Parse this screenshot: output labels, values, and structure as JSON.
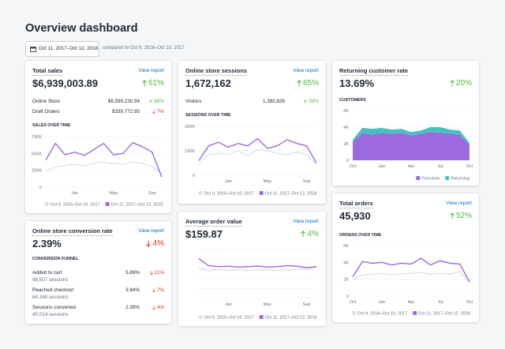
{
  "header": {
    "title": "Overview dashboard",
    "date_range": "Oct 11, 2017–Oct 12, 2018",
    "comparison": "compared to Oct 9, 2016–Oct 10, 2017"
  },
  "cards": [
    {
      "title": "Total sales",
      "link": "View report",
      "value": "$6,939,003.89",
      "change": {
        "direction": "up",
        "text": "61%"
      },
      "rows": [
        {
          "label": "Online Store",
          "value": "$6,599,230.94",
          "change": {
            "direction": "up",
            "text": "68%"
          }
        },
        {
          "label": "Draft Orders",
          "value": "$339,772.95",
          "change": {
            "direction": "down",
            "text": "7%"
          }
        }
      ],
      "chart": {
        "type": "line",
        "title": "SALES OVER TIME",
        "categories": [
          null,
          null,
          null,
          "Jan",
          null,
          null,
          null,
          "May",
          null,
          null,
          null,
          "Sep",
          null
        ],
        "series": [
          {
            "name": "Oct 9, 2016–Oct 10, 2017",
            "color": "#dfe3e8",
            "values": [
              240000,
              300000,
              320000,
              340000,
              310000,
              360000,
              370000,
              350000,
              340000,
              370000,
              350000,
              310000,
              200000
            ]
          },
          {
            "name": "Oct 11, 2017–Oct 12, 2018",
            "color": "#9c6ade",
            "values": [
              400000,
              650000,
              480000,
              520000,
              470000,
              560000,
              650000,
              480000,
              500000,
              660000,
              600000,
              520000,
              150000
            ]
          }
        ],
        "ylim": [
          0,
          750000
        ],
        "yticks": [
          {
            "value": 0,
            "label": "0"
          },
          {
            "value": 250000,
            "label": "250K"
          },
          {
            "value": 500000,
            "label": "500K"
          },
          {
            "value": 750000,
            "label": "750K"
          }
        ],
        "grid": true,
        "tick_labels": true,
        "legend": "bottom"
      }
    },
    {
      "title": "Online store conversion rate",
      "link": "View report",
      "value": "2.39%",
      "change": {
        "direction": "down",
        "text": "4%"
      },
      "funnel_title": "CONVERSION FUNNEL",
      "funnel": [
        {
          "label": "Added to cart",
          "sessions": "98,507 sessions",
          "rate": "5.89%",
          "change": {
            "direction": "down",
            "text": "11%"
          }
        },
        {
          "label": "Reached checkout",
          "sessions": "64,160 sessions",
          "rate": "3.84%",
          "change": {
            "direction": "down",
            "text": "7%"
          }
        },
        {
          "label": "Sessions converted",
          "sessions": "40,014 sessions",
          "rate": "2.39%",
          "change": {
            "direction": "down",
            "text": "4%"
          }
        }
      ]
    },
    {
      "title": "Online store sessions",
      "link": "View report",
      "value": "1,672,162",
      "change": {
        "direction": "up",
        "text": "65%"
      },
      "rows": [
        {
          "label": "Visitors",
          "value": "1,380,828",
          "change": {
            "direction": "up",
            "text": "59%"
          }
        }
      ],
      "chart": {
        "type": "line",
        "title": "SESSIONS OVER TIME",
        "categories": [
          null,
          null,
          null,
          "Jan",
          null,
          null,
          null,
          "May",
          null,
          null,
          null,
          "Sep",
          null
        ],
        "series": [
          {
            "name": "Oct 9, 2016–Oct 10, 2017",
            "color": "#dfe3e8",
            "values": [
              45000,
              85000,
              90000,
              85000,
              100000,
              80000,
              105000,
              100000,
              90000,
              85000,
              95000,
              85000,
              40000
            ]
          },
          {
            "name": "Oct 11, 2017–Oct 12, 2018",
            "color": "#9c6ade",
            "values": [
              60000,
              120000,
              135000,
              115000,
              130000,
              120000,
              150000,
              110000,
              120000,
              145000,
              130000,
              120000,
              50000
            ]
          }
        ],
        "ylim": [
          0,
          200000
        ],
        "yticks": [
          {
            "value": 0,
            "label": "0"
          },
          {
            "value": 100000,
            "label": "100K"
          },
          {
            "value": 200000,
            "label": "200K"
          }
        ],
        "grid": true,
        "tick_labels": true,
        "legend": "bottom"
      }
    },
    {
      "title": "Average order value",
      "link": "View report",
      "value": "$159.87",
      "change": {
        "direction": "up",
        "text": "4%"
      },
      "chart": {
        "type": "line",
        "categories": [
          null,
          null,
          null,
          "Jan",
          null,
          null,
          null,
          "May",
          null,
          null,
          null,
          "Sep",
          null
        ],
        "series": [
          {
            "name": "Oct 9, 2016–Oct 10, 2017",
            "color": "#dfe3e8",
            "values": [
              150,
              140,
              145,
              142,
              145,
              140,
              143,
              145,
              140,
              142,
              145,
              148,
              155
            ]
          },
          {
            "name": "Oct 11, 2017–Oct 12, 2018",
            "color": "#9c6ade",
            "values": [
              200,
              165,
              160,
              162,
              158,
              160,
              163,
              158,
              160,
              165,
              162,
              155,
              160
            ]
          }
        ],
        "ylim": [
          0,
          250
        ],
        "yticks": [
          0,
          50,
          100,
          150,
          200,
          250
        ],
        "grid": true,
        "tick_labels": false,
        "legend": "bottom"
      }
    },
    {
      "title": "Returning customer rate",
      "value": "13.69%",
      "change": {
        "direction": "up",
        "text": "20%"
      },
      "chart": {
        "type": "area",
        "stacked": true,
        "title": "CUSTOMERS",
        "categories": [
          "Oct",
          null,
          null,
          "Jan",
          null,
          null,
          "Apr",
          null,
          null,
          "Jul",
          null,
          null,
          "Oct"
        ],
        "series": [
          {
            "name": "First-time",
            "color": "#9c6ade",
            "values": [
              2200,
              3300,
              3100,
              3300,
              3200,
              3300,
              3000,
              3200,
              3400,
              3300,
              3200,
              3100,
              1800
            ]
          },
          {
            "name": "Returning",
            "color": "#47c1bf",
            "values": [
              300,
              600,
              700,
              600,
              500,
              500,
              400,
              400,
              600,
              700,
              500,
              500,
              300
            ]
          }
        ],
        "ylim": [
          0,
          6000
        ],
        "yticks": [
          0,
          {
            "value": 2000,
            "label": "2K"
          },
          {
            "value": 4000,
            "label": "4K"
          },
          {
            "value": 6000,
            "label": "6K"
          }
        ],
        "grid": true,
        "tick_labels": true,
        "legend": "bottom-right"
      }
    },
    {
      "title": "Total orders",
      "link": "View report",
      "value": "45,930",
      "change": {
        "direction": "up",
        "text": "52%"
      },
      "chart": {
        "type": "line",
        "title": "ORDERS OVER TIME",
        "categories": [
          "Oct",
          null,
          null,
          "Jan",
          null,
          null,
          "Apr",
          null,
          null,
          "Jul",
          null,
          null,
          "Oct"
        ],
        "series": [
          {
            "name": "Oct 9, 2016–Oct 10, 2017",
            "color": "#dfe3e8",
            "values": [
              2000,
              2500,
              2600,
              2700,
              2500,
              2600,
              2700,
              2800,
              2600,
              2700,
              2600,
              2900,
              1600
            ]
          },
          {
            "name": "Oct 11, 2017–Oct 12, 2018",
            "color": "#9c6ade",
            "values": [
              2300,
              4100,
              3900,
              4000,
              3700,
              3900,
              3800,
              4500,
              3700,
              4200,
              3900,
              3800,
              1700
            ]
          }
        ],
        "ylim": [
          0,
          6000
        ],
        "yticks": [
          0,
          {
            "value": 2000,
            "label": "2K"
          },
          {
            "value": 4000,
            "label": "4K"
          },
          {
            "value": 6000,
            "label": "6K"
          }
        ],
        "grid": true,
        "tick_labels": true,
        "legend": "bottom"
      }
    }
  ]
}
